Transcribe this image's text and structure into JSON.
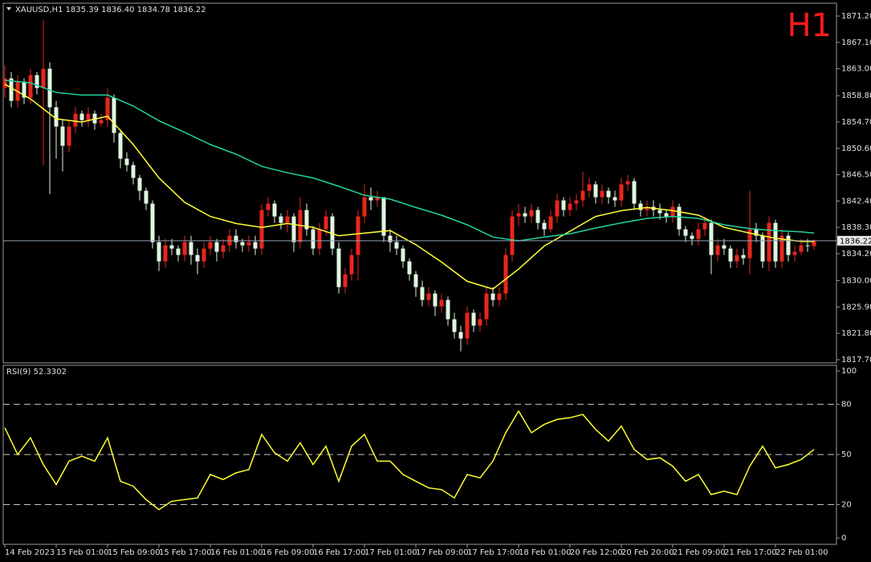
{
  "chart_data": [
    {
      "type": "candlestick",
      "title": "XAUUSD,H1  1835.39 1836.40 1834.78 1836.22",
      "annotation": "H1",
      "annotation_color": "#ff1a1a",
      "up_color": "#e8261b",
      "down_color": "#dff5df",
      "open": [
        1860,
        1861.5,
        1858,
        1861,
        1858.5,
        1862,
        1860,
        1863,
        1857,
        1854,
        1851,
        1854,
        1856,
        1855,
        1856,
        1854.5,
        1855,
        1858.5,
        1853,
        1849,
        1848,
        1846,
        1844,
        1842,
        1836,
        1833,
        1835.5,
        1835,
        1834,
        1836,
        1834,
        1833,
        1835,
        1836,
        1834.5,
        1835.5,
        1837,
        1836,
        1835.5,
        1836,
        1835,
        1841,
        1842,
        1840,
        1839,
        1840,
        1836,
        1841,
        1838,
        1835,
        1838,
        1840,
        1835,
        1829,
        1831,
        1834,
        1840,
        1843,
        1842.5,
        1843,
        1837,
        1836,
        1835,
        1833,
        1831,
        1829,
        1827,
        1828,
        1826,
        1827,
        1824,
        1822,
        1821,
        1825,
        1823,
        1824,
        1828,
        1827,
        1828,
        1834,
        1840,
        1840.5,
        1840,
        1841,
        1839,
        1838,
        1840,
        1842.5,
        1841,
        1842,
        1842.5,
        1844,
        1845,
        1843,
        1844,
        1843,
        1842.5,
        1845,
        1845.5,
        1842,
        1841,
        1841.5,
        1841,
        1840.5,
        1840,
        1841.5,
        1838,
        1837,
        1836.5,
        1838,
        1839,
        1834,
        1835.5,
        1835,
        1833,
        1834,
        1833.5,
        1838,
        1837,
        1833,
        1839,
        1833,
        1837,
        1834,
        1834.5,
        1835.5,
        1835.39
      ],
      "high": [
        1863.5,
        1862.5,
        1862,
        1861.5,
        1863,
        1862.5,
        1870.5,
        1864,
        1858,
        1855,
        1855,
        1857,
        1856.5,
        1857,
        1856.5,
        1856,
        1860,
        1859,
        1853.5,
        1850,
        1848.5,
        1846.5,
        1844.5,
        1842.5,
        1837,
        1836.5,
        1836.5,
        1835.5,
        1837,
        1837,
        1835,
        1836,
        1837,
        1836.5,
        1836.5,
        1838,
        1838,
        1836.5,
        1837,
        1837,
        1842,
        1843,
        1842.5,
        1840.5,
        1841,
        1840.5,
        1843,
        1842,
        1838.5,
        1839,
        1841,
        1840.5,
        1836,
        1832,
        1835,
        1841,
        1845,
        1844.5,
        1844,
        1843,
        1838,
        1837,
        1835.5,
        1833.5,
        1831.5,
        1830,
        1829,
        1828.5,
        1828,
        1827.5,
        1825,
        1823,
        1826,
        1825.5,
        1825,
        1829,
        1829,
        1829,
        1835,
        1841,
        1842,
        1841.5,
        1842,
        1841.5,
        1839.5,
        1841,
        1843.5,
        1843,
        1843,
        1843.5,
        1847,
        1846,
        1845.5,
        1845,
        1844.5,
        1844,
        1846,
        1846.5,
        1846,
        1842.5,
        1842.5,
        1842.5,
        1842,
        1841,
        1842.5,
        1842,
        1838.5,
        1837.5,
        1839,
        1840,
        1839.5,
        1836.5,
        1836.5,
        1835.5,
        1835,
        1835,
        1844,
        1839,
        1837.5,
        1840,
        1839.5,
        1838,
        1837.5,
        1835.5,
        1836.5,
        1836.5,
        1836.4
      ],
      "low": [
        1858.5,
        1857,
        1857,
        1857.5,
        1857.5,
        1859,
        1848,
        1843.5,
        1849,
        1847,
        1850,
        1853,
        1854,
        1854,
        1853.5,
        1854,
        1854,
        1851.5,
        1847.5,
        1847,
        1845,
        1842.5,
        1841,
        1835,
        1831.5,
        1832,
        1834,
        1833,
        1833,
        1832.5,
        1831,
        1832,
        1834,
        1833,
        1833.5,
        1834.5,
        1835,
        1834.5,
        1834.5,
        1834,
        1834,
        1840,
        1839,
        1838,
        1837.5,
        1834.5,
        1835,
        1837,
        1834,
        1834,
        1837,
        1834,
        1828,
        1828,
        1830,
        1830,
        1839,
        1841,
        1841.5,
        1836,
        1834.5,
        1834,
        1832,
        1830,
        1827.5,
        1826,
        1826,
        1824.5,
        1825,
        1823,
        1821,
        1819,
        1820,
        1822,
        1822,
        1823,
        1826,
        1826,
        1827,
        1833,
        1838.5,
        1839,
        1839,
        1838,
        1837,
        1837.5,
        1839,
        1840,
        1840,
        1841,
        1841.5,
        1843,
        1842,
        1842,
        1842,
        1841.5,
        1841.5,
        1844,
        1841,
        1840,
        1840,
        1840,
        1839.5,
        1839,
        1839,
        1837,
        1836,
        1835.5,
        1835.5,
        1837,
        1831,
        1833,
        1834,
        1832,
        1832,
        1832.5,
        1831,
        1836,
        1832,
        1831.5,
        1832,
        1832,
        1833,
        1833,
        1834,
        1834.5,
        1834.78
      ],
      "close": [
        1861.5,
        1858,
        1861,
        1858.5,
        1862,
        1860,
        1863,
        1857,
        1854,
        1851,
        1854,
        1856,
        1855,
        1856,
        1854.5,
        1855,
        1858.5,
        1853,
        1849,
        1848,
        1846,
        1844,
        1842,
        1836,
        1833,
        1835.5,
        1835,
        1834,
        1836,
        1834,
        1833,
        1835,
        1836,
        1834.5,
        1835.5,
        1837,
        1836,
        1835.5,
        1836,
        1835,
        1841,
        1842,
        1840,
        1839,
        1840,
        1836,
        1841,
        1838,
        1835,
        1838,
        1840,
        1835,
        1829,
        1831,
        1834,
        1840,
        1843,
        1842.5,
        1843,
        1837,
        1836,
        1835,
        1833,
        1831,
        1829,
        1827,
        1828,
        1826,
        1827,
        1824,
        1822,
        1821,
        1825,
        1823,
        1824,
        1828,
        1827,
        1828,
        1834,
        1840,
        1840.5,
        1840,
        1841,
        1839,
        1838,
        1840,
        1842.5,
        1841,
        1842,
        1842.5,
        1844,
        1845,
        1843,
        1844,
        1843,
        1842.5,
        1845,
        1845.5,
        1842,
        1841,
        1841.5,
        1841,
        1840.5,
        1840,
        1841.5,
        1838,
        1837,
        1836.5,
        1838,
        1839,
        1834,
        1835.5,
        1835,
        1833,
        1834,
        1833.5,
        1838,
        1837,
        1833,
        1839,
        1833,
        1837,
        1834,
        1834.5,
        1835.5,
        1835.39,
        1836.22
      ],
      "series": [
        {
          "color": "#ffff33",
          "x": [
            0,
            4,
            8,
            12,
            16,
            20,
            24,
            28,
            32,
            36,
            40,
            44,
            48,
            52,
            56,
            60,
            64,
            68,
            72,
            76,
            80,
            84,
            88,
            92,
            96,
            100,
            104,
            108,
            112,
            116,
            120,
            124,
            126
          ],
          "values": [
            1860.6,
            1858.3,
            1855.2,
            1854.7,
            1855.6,
            1851.2,
            1846,
            1842.2,
            1840,
            1838.9,
            1838.3,
            1838.9,
            1838.3,
            1837,
            1837.4,
            1837.8,
            1835.6,
            1832.9,
            1829.9,
            1828.7,
            1831.8,
            1835.4,
            1837.7,
            1840,
            1840.9,
            1841.4,
            1840.9,
            1840.2,
            1838.3,
            1837.4,
            1836.6,
            1836.1,
            1836.1
          ]
        },
        {
          "color": "#22d3a0",
          "x": [
            0,
            4,
            8,
            12,
            16,
            20,
            24,
            28,
            32,
            36,
            40,
            44,
            48,
            52,
            56,
            60,
            64,
            68,
            72,
            76,
            80,
            84,
            88,
            92,
            96,
            100,
            104,
            108,
            112,
            116,
            120,
            124,
            126
          ],
          "values": [
            1861.2,
            1860.8,
            1859.3,
            1858.9,
            1858.9,
            1857.2,
            1854.9,
            1853.1,
            1851.2,
            1849.7,
            1847.8,
            1846.8,
            1846,
            1844.7,
            1843.3,
            1842.7,
            1841.4,
            1840.2,
            1838.7,
            1836.8,
            1836.2,
            1836.8,
            1837.3,
            1838.2,
            1839,
            1839.7,
            1840,
            1839.7,
            1838.7,
            1838.1,
            1837.8,
            1837.6,
            1837.4
          ]
        }
      ],
      "current_price": 1836.22,
      "current_price_color": "#8fa0b0",
      "xlim": [
        -0.25,
        129.5
      ],
      "ylim": [
        1817.2,
        1873.2
      ],
      "yticks": [
        {
          "value": 1871.2,
          "label": "1871.20"
        },
        {
          "value": 1867.1,
          "label": "1867.10"
        },
        {
          "value": 1863,
          "label": "1863.00"
        },
        {
          "value": 1858.8,
          "label": "1858.80"
        },
        {
          "value": 1854.7,
          "label": "1854.70"
        },
        {
          "value": 1850.6,
          "label": "1850.60"
        },
        {
          "value": 1846.5,
          "label": "1846.50"
        },
        {
          "value": 1842.4,
          "label": "1842.40"
        },
        {
          "value": 1838.3,
          "label": "1838.30"
        },
        {
          "value": 1834.2,
          "label": "1834.20"
        },
        {
          "value": 1830,
          "label": "1830.00"
        },
        {
          "value": 1825.9,
          "label": "1825.90"
        },
        {
          "value": 1821.8,
          "label": "1821.80"
        },
        {
          "value": 1817.7,
          "label": "1817.70"
        }
      ]
    },
    {
      "type": "line",
      "title": "RSI(9) 52.3302",
      "xlim": [
        -0.25,
        129.5
      ],
      "ylim": [
        -3.8,
        103.4
      ],
      "yticks": [
        100,
        80,
        50,
        20,
        0
      ],
      "levels": [
        80,
        50,
        20
      ],
      "level_color": "#c8c8c8",
      "xticks": [
        {
          "value": 0,
          "label": "14 Feb 2023"
        },
        {
          "value": 8,
          "label": "15 Feb 01:00"
        },
        {
          "value": 16,
          "label": "15 Feb 09:00"
        },
        {
          "value": 24,
          "label": "15 Feb 17:00"
        },
        {
          "value": 32,
          "label": "16 Feb 01:00"
        },
        {
          "value": 40,
          "label": "16 Feb 09:00"
        },
        {
          "value": 48,
          "label": "16 Feb 17:00"
        },
        {
          "value": 56,
          "label": "17 Feb 01:00"
        },
        {
          "value": 64,
          "label": "17 Feb 09:00"
        },
        {
          "value": 72,
          "label": "17 Feb 17:00"
        },
        {
          "value": 80,
          "label": "18 Feb 01:00"
        },
        {
          "value": 88,
          "label": "20 Feb 12:00"
        },
        {
          "value": 96,
          "label": "20 Feb 20:00"
        },
        {
          "value": 104,
          "label": "21 Feb 09:00"
        },
        {
          "value": 112,
          "label": "21 Feb 17:00"
        },
        {
          "value": 120,
          "label": "22 Feb 01:00"
        }
      ],
      "series": [
        {
          "color": "#ffff33",
          "x": [
            0,
            2,
            4,
            6,
            8,
            10,
            12,
            14,
            16,
            18,
            20,
            22,
            24,
            26,
            28,
            30,
            32,
            34,
            36,
            38,
            40,
            42,
            44,
            46,
            48,
            50,
            52,
            54,
            56,
            58,
            60,
            62,
            64,
            66,
            68,
            70,
            72,
            74,
            76,
            78,
            80,
            82,
            84,
            86,
            88,
            90,
            92,
            94,
            96,
            98,
            100,
            102,
            104,
            106,
            108,
            110,
            112,
            114,
            116,
            118,
            120,
            122,
            124,
            126
          ],
          "values": [
            66,
            50,
            60,
            44,
            32,
            46,
            49,
            46,
            60,
            34,
            31,
            23,
            17,
            22,
            23,
            24,
            38,
            35,
            39,
            41,
            62,
            51,
            46,
            57,
            44,
            55,
            34,
            55,
            62,
            46,
            46,
            38,
            34,
            30,
            29,
            24,
            38,
            36,
            46,
            63,
            76,
            63,
            68,
            71,
            72,
            74,
            65,
            58,
            67,
            53,
            47,
            48,
            43,
            34,
            38,
            26,
            28,
            26,
            43,
            55,
            42,
            44,
            47,
            53
          ]
        }
      ]
    }
  ]
}
